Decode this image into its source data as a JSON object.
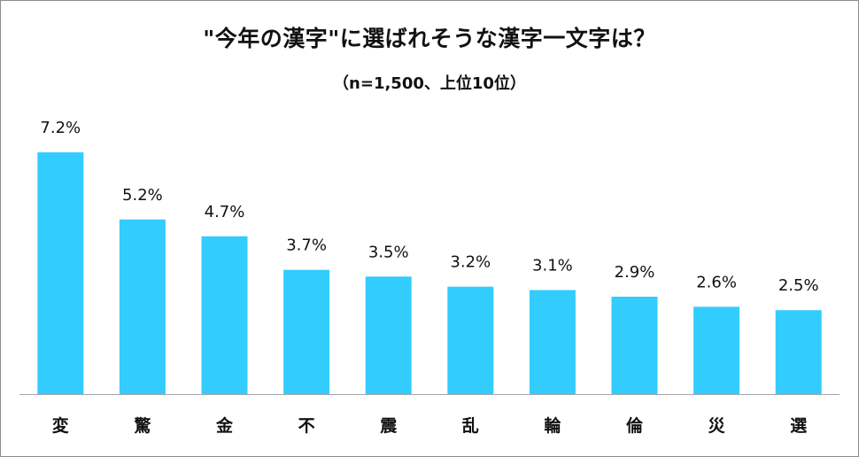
{
  "chart_data": {
    "type": "bar",
    "title": "\"今年の漢字\"に選ばれそうな漢字一文字は？",
    "subtitle": "（n=1,500、上位10位）",
    "categories": [
      "変",
      "驚",
      "金",
      "不",
      "震",
      "乱",
      "輪",
      "倫",
      "災",
      "選"
    ],
    "values": [
      7.2,
      5.2,
      4.7,
      3.7,
      3.5,
      3.2,
      3.1,
      2.9,
      2.6,
      2.5
    ],
    "data_labels": [
      "7.2%",
      "5.2%",
      "4.7%",
      "3.7%",
      "3.5%",
      "3.2%",
      "3.1%",
      "2.9%",
      "2.6%",
      "2.5%"
    ],
    "unit": "%",
    "xlabel": "",
    "ylabel": "",
    "ylim": [
      0,
      7.2
    ],
    "grid": false,
    "legend": "none",
    "bar_color": "#33ccff",
    "axis_color": "#a6a6a6"
  }
}
